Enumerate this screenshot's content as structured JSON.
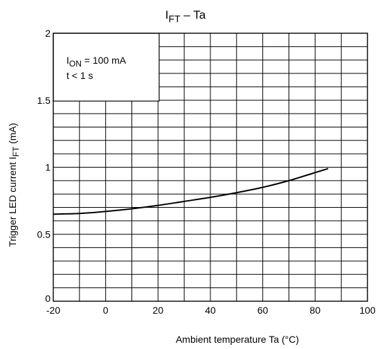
{
  "chart_data": {
    "type": "line",
    "title_main": "I",
    "title_sub": "FT",
    "title_rest": " – Ta",
    "xlabel": "Ambient temperature   Ta (°C)",
    "ylabel_main": "Trigger LED current   I",
    "ylabel_sub": "FT",
    "ylabel_unit": " (mA)",
    "xlim": [
      -20,
      100
    ],
    "ylim": [
      0,
      2
    ],
    "grid": true,
    "x_ticks": [
      -20,
      0,
      20,
      40,
      60,
      80,
      100
    ],
    "x_tick_labels": [
      "-20",
      "0",
      "20",
      "40",
      "60",
      "80",
      "100"
    ],
    "y_ticks": [
      0,
      0.5,
      1,
      1.5,
      2
    ],
    "y_tick_labels": [
      "0",
      "0.5",
      "1",
      "1.5",
      "2"
    ],
    "annotation": {
      "line1_main": "I",
      "line1_sub": "ON",
      "line1_rest": " = 100 mA",
      "line2": "t < 1 s"
    },
    "series": [
      {
        "x": [
          -20,
          -10,
          0,
          10,
          20,
          30,
          40,
          50,
          60,
          70,
          80,
          85
        ],
        "values": [
          0.65,
          0.655,
          0.67,
          0.69,
          0.715,
          0.745,
          0.775,
          0.81,
          0.85,
          0.9,
          0.96,
          0.99
        ]
      }
    ]
  }
}
